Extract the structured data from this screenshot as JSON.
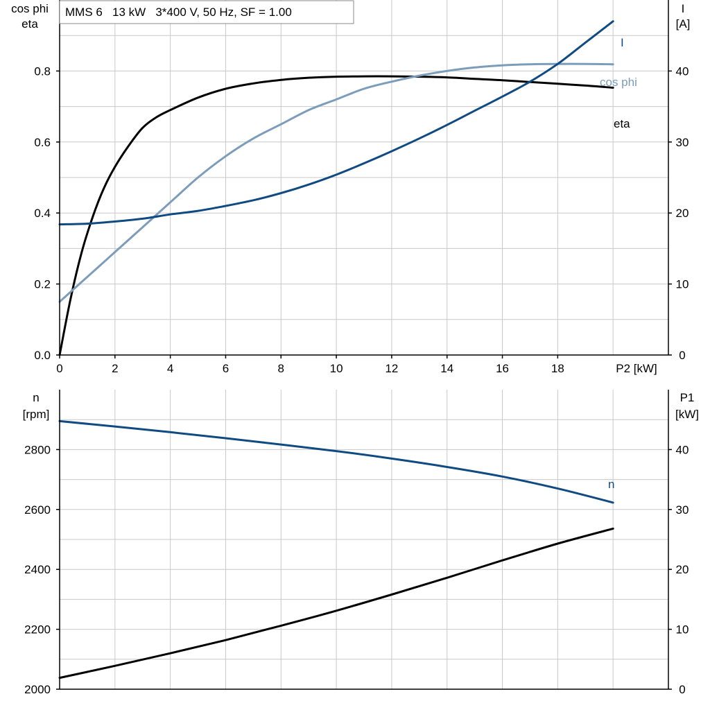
{
  "chart_data": [
    {
      "type": "line",
      "title": "MMS 6   13 kW   3*400 V, 50 Hz, SF = 1.00",
      "xlabel": "P2 [kW]",
      "ylabel_left": [
        "cos phi",
        "eta"
      ],
      "ylabel_right": [
        "I",
        "[A]"
      ],
      "xlim": [
        0,
        22
      ],
      "ylim_left": [
        0,
        1.0
      ],
      "ylim_right": [
        0,
        50
      ],
      "x_ticks": [
        0,
        2,
        4,
        6,
        8,
        10,
        12,
        14,
        16,
        18
      ],
      "y_ticks_left": [
        "0.0",
        "0.2",
        "0.4",
        "0.6",
        "0.8"
      ],
      "y_ticks_right": [
        "0",
        "10",
        "20",
        "30",
        "40"
      ],
      "grid": true,
      "series": [
        {
          "name": "eta",
          "axis": "left",
          "color": "#000000",
          "x": [
            0,
            0.4,
            0.8,
            1.2,
            1.6,
            2,
            2.5,
            3,
            3.5,
            4,
            5,
            6,
            7,
            8,
            9,
            10,
            11,
            12,
            13,
            14,
            15,
            16,
            17,
            18,
            19,
            20
          ],
          "y": [
            0.0,
            0.16,
            0.29,
            0.39,
            0.47,
            0.53,
            0.59,
            0.64,
            0.67,
            0.69,
            0.725,
            0.75,
            0.765,
            0.775,
            0.781,
            0.784,
            0.785,
            0.785,
            0.784,
            0.782,
            0.778,
            0.774,
            0.769,
            0.764,
            0.759,
            0.753
          ]
        },
        {
          "name": "cos phi",
          "axis": "left",
          "color": "#7b9dbb",
          "x": [
            0,
            1,
            2,
            3,
            4,
            5,
            6,
            7,
            8,
            9,
            10,
            11,
            12,
            13,
            14,
            15,
            16,
            17,
            18,
            19,
            20
          ],
          "y": [
            0.15,
            0.22,
            0.29,
            0.36,
            0.43,
            0.5,
            0.56,
            0.61,
            0.65,
            0.69,
            0.72,
            0.75,
            0.77,
            0.787,
            0.8,
            0.81,
            0.816,
            0.819,
            0.82,
            0.82,
            0.819
          ]
        },
        {
          "name": "I",
          "axis": "right",
          "color": "#0f4a82",
          "x": [
            0,
            1,
            2,
            3,
            4,
            5,
            6,
            7,
            8,
            9,
            10,
            11,
            12,
            13,
            14,
            15,
            16,
            17,
            18,
            19,
            20
          ],
          "y": [
            18.4,
            18.5,
            18.8,
            19.2,
            19.8,
            20.3,
            21.0,
            21.8,
            22.8,
            24.0,
            25.4,
            27.0,
            28.7,
            30.5,
            32.4,
            34.4,
            36.4,
            38.5,
            41.0,
            44.0,
            47.0
          ]
        }
      ]
    },
    {
      "type": "line",
      "xlim": [
        0,
        22
      ],
      "ylabel_left": [
        "n",
        "[rpm]"
      ],
      "ylabel_right": [
        "P1",
        "[kW]"
      ],
      "ylim_left": [
        2000,
        3000
      ],
      "ylim_right": [
        0,
        50
      ],
      "y_ticks_left": [
        "2000",
        "2200",
        "2400",
        "2600",
        "2800"
      ],
      "y_ticks_right": [
        "0",
        "10",
        "20",
        "30",
        "40"
      ],
      "grid": true,
      "series": [
        {
          "name": "n",
          "axis": "left",
          "color": "#0f4a82",
          "x": [
            0,
            2,
            4,
            6,
            8,
            10,
            12,
            14,
            16,
            18,
            20
          ],
          "y": [
            2895,
            2877,
            2858,
            2838,
            2817,
            2795,
            2770,
            2742,
            2710,
            2670,
            2623
          ]
        },
        {
          "axis": "right",
          "color": "#000000",
          "x": [
            0,
            2,
            4,
            6,
            8,
            10,
            12,
            14,
            16,
            18,
            20
          ],
          "y": [
            1.9,
            3.9,
            6.0,
            8.2,
            10.6,
            13.1,
            15.8,
            18.6,
            21.5,
            24.3,
            26.8
          ]
        }
      ]
    }
  ]
}
